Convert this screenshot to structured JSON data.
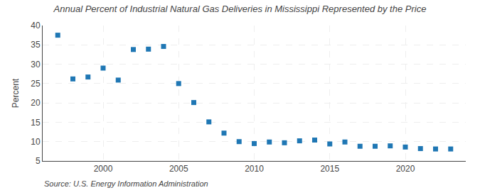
{
  "chart_data": {
    "type": "scatter",
    "title": "Annual Percent of Industrial Natural Gas Deliveries in Mississippi Represented by the Price",
    "ylabel": "Percent",
    "annotations": [
      "Source: U.S. Energy Information Administration"
    ],
    "x": [
      1997,
      1998,
      1999,
      2000,
      2001,
      2002,
      2003,
      2004,
      2005,
      2006,
      2007,
      2008,
      2009,
      2010,
      2011,
      2012,
      2013,
      2014,
      2015,
      2016,
      2017,
      2018,
      2019,
      2020,
      2021,
      2022,
      2023
    ],
    "values": [
      37.5,
      26.2,
      26.7,
      29.0,
      25.9,
      33.8,
      33.9,
      34.6,
      25.0,
      20.1,
      15.1,
      12.2,
      10.0,
      9.5,
      9.9,
      9.7,
      10.2,
      10.4,
      9.4,
      9.9,
      8.8,
      8.8,
      8.9,
      8.6,
      8.2,
      8.1,
      8.1
    ],
    "xlim": [
      1996,
      2024
    ],
    "xticks": [
      2000,
      2005,
      2010,
      2015,
      2020
    ],
    "ylim": [
      5,
      40
    ],
    "yticks": [
      5,
      10,
      15,
      20,
      25,
      30,
      35,
      40
    ],
    "grid": true,
    "marker": "square"
  }
}
